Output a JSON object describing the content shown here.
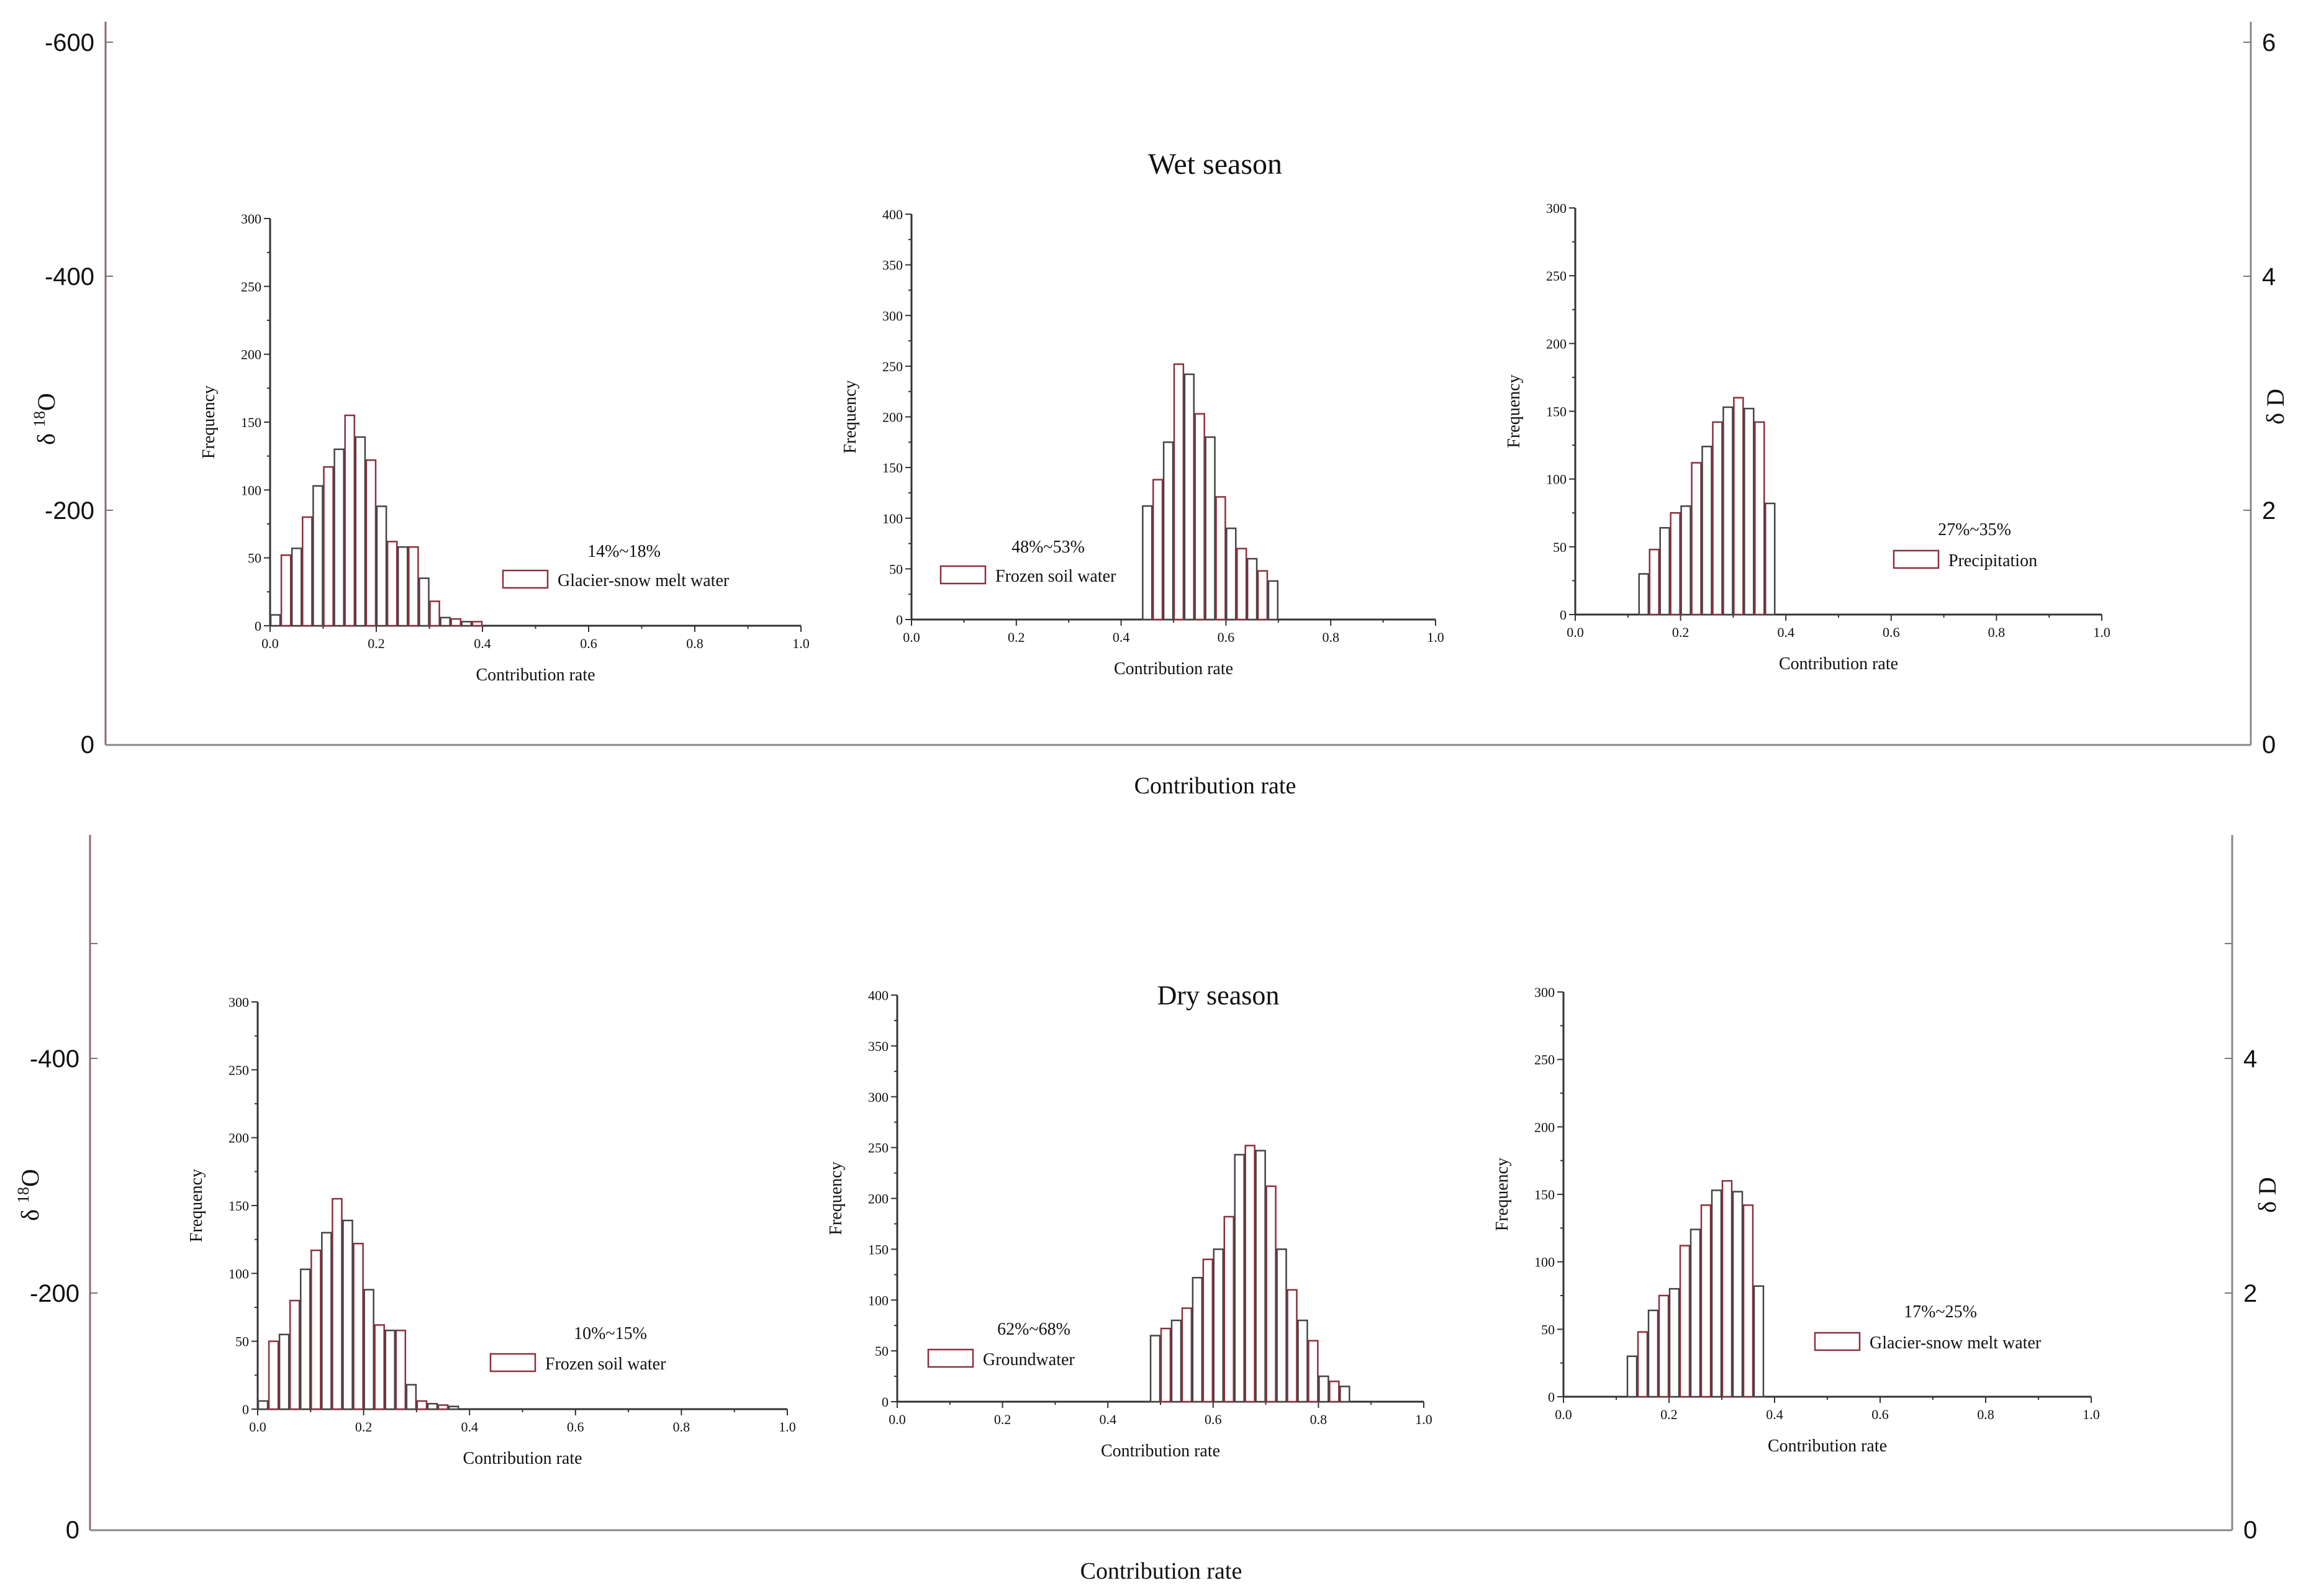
{
  "figure": {
    "panels": [
      {
        "season_title": "Wet season",
        "xlabel": "Contribution rate",
        "left_axis": {
          "label_main": "δ",
          "label_sup": "18",
          "label_tail": "O",
          "ticks": [
            "-600",
            "-400",
            "-200",
            "0"
          ]
        },
        "right_axis": {
          "label": "δ D",
          "ticks": [
            "6",
            "4",
            "2",
            "0"
          ]
        }
      },
      {
        "season_title": "Dry season",
        "xlabel": "Contribution rate",
        "left_axis": {
          "label_main": "δ",
          "label_sup": "18",
          "label_tail": "O",
          "ticks": [
            "-400",
            "-200",
            "0"
          ]
        },
        "right_axis": {
          "label": "δ D",
          "ticks": [
            "4",
            "2",
            "0"
          ]
        }
      }
    ]
  },
  "colors": {
    "bar_stroke": "#8b2f3c",
    "axis": "#333333",
    "outer_axis": "#777777",
    "text": "#111111"
  },
  "chart_data": [
    {
      "type": "bar",
      "season": "Wet season",
      "title": "",
      "legend": "Glacier-snow melt water",
      "annotation": "14%~18%",
      "xlabel": "Contribution rate",
      "ylabel": "Frequency",
      "xlim": [
        0,
        1.0
      ],
      "ylim": [
        0,
        300
      ],
      "xticks": [
        "0.0",
        "0.2",
        "0.4",
        "0.6",
        "0.8",
        "1.0"
      ],
      "yticks": [
        "0",
        "50",
        "100",
        "150",
        "200",
        "250",
        "300"
      ],
      "bin_start": 0.0,
      "bin_width": 0.02,
      "values": [
        8,
        52,
        57,
        80,
        103,
        117,
        130,
        155,
        139,
        122,
        88,
        62,
        58,
        58,
        35,
        18,
        6,
        5,
        3,
        3
      ]
    },
    {
      "type": "bar",
      "season": "Wet season",
      "title": "",
      "legend": "Frozen soil water",
      "annotation": "48%~53%",
      "xlabel": "Contribution rate",
      "ylabel": "Frequency",
      "xlim": [
        0,
        1.0
      ],
      "ylim": [
        0,
        400
      ],
      "xticks": [
        "0.0",
        "0.2",
        "0.4",
        "0.6",
        "0.8",
        "1.0"
      ],
      "yticks": [
        "0",
        "50",
        "100",
        "150",
        "200",
        "250",
        "300",
        "350",
        "400"
      ],
      "bin_start": 0.44,
      "bin_width": 0.02,
      "values": [
        112,
        138,
        175,
        252,
        242,
        203,
        180,
        121,
        90,
        70,
        60,
        48,
        38
      ]
    },
    {
      "type": "bar",
      "season": "Wet season",
      "title": "",
      "legend": "Precipitation",
      "annotation": "27%~35%",
      "xlabel": "Contribution rate",
      "ylabel": "Frequency",
      "xlim": [
        0,
        1.0
      ],
      "ylim": [
        0,
        300
      ],
      "xticks": [
        "0.0",
        "0.2",
        "0.4",
        "0.6",
        "0.8",
        "1.0"
      ],
      "yticks": [
        "0",
        "50",
        "100",
        "150",
        "200",
        "250",
        "300"
      ],
      "bin_start": 0.12,
      "bin_width": 0.02,
      "values": [
        30,
        48,
        64,
        75,
        80,
        112,
        124,
        142,
        153,
        160,
        152,
        142,
        82
      ]
    },
    {
      "type": "bar",
      "season": "Dry season",
      "title": "",
      "legend": "Frozen soil water",
      "annotation": "10%~15%",
      "xlabel": "Contribution rate",
      "ylabel": "Frequency",
      "xlim": [
        0,
        1.0
      ],
      "ylim": [
        0,
        300
      ],
      "xticks": [
        "0.0",
        "0.2",
        "0.4",
        "0.6",
        "0.8",
        "1.0"
      ],
      "yticks": [
        "0",
        "50",
        "100",
        "150",
        "200",
        "250",
        "300"
      ],
      "bin_start": 0.0,
      "bin_width": 0.02,
      "values": [
        6,
        50,
        55,
        80,
        103,
        117,
        130,
        155,
        139,
        122,
        88,
        62,
        58,
        58,
        18,
        6,
        4,
        3,
        2
      ]
    },
    {
      "type": "bar",
      "season": "Dry season",
      "title": "",
      "legend": "Groundwater",
      "annotation": "62%~68%",
      "xlabel": "Contribution rate",
      "ylabel": "Frequency",
      "xlim": [
        0,
        1.0
      ],
      "ylim": [
        0,
        400
      ],
      "xticks": [
        "0.0",
        "0.2",
        "0.4",
        "0.6",
        "0.8",
        "1.0"
      ],
      "yticks": [
        "0",
        "50",
        "100",
        "150",
        "200",
        "250",
        "300",
        "350",
        "400"
      ],
      "bin_start": 0.48,
      "bin_width": 0.02,
      "values": [
        65,
        72,
        80,
        92,
        122,
        140,
        150,
        182,
        243,
        252,
        247,
        212,
        150,
        110,
        80,
        60,
        25,
        20,
        15
      ]
    },
    {
      "type": "bar",
      "season": "Dry season",
      "title": "",
      "legend": "Glacier-snow melt water",
      "annotation": "17%~25%",
      "xlabel": "Contribution rate",
      "ylabel": "Frequency",
      "xlim": [
        0,
        1.0
      ],
      "ylim": [
        0,
        300
      ],
      "xticks": [
        "0.0",
        "0.2",
        "0.4",
        "0.6",
        "0.8",
        "1.0"
      ],
      "yticks": [
        "0",
        "50",
        "100",
        "150",
        "200",
        "250",
        "300"
      ],
      "bin_start": 0.12,
      "bin_width": 0.02,
      "values": [
        30,
        48,
        64,
        75,
        80,
        112,
        124,
        142,
        153,
        160,
        152,
        142,
        82
      ]
    }
  ]
}
